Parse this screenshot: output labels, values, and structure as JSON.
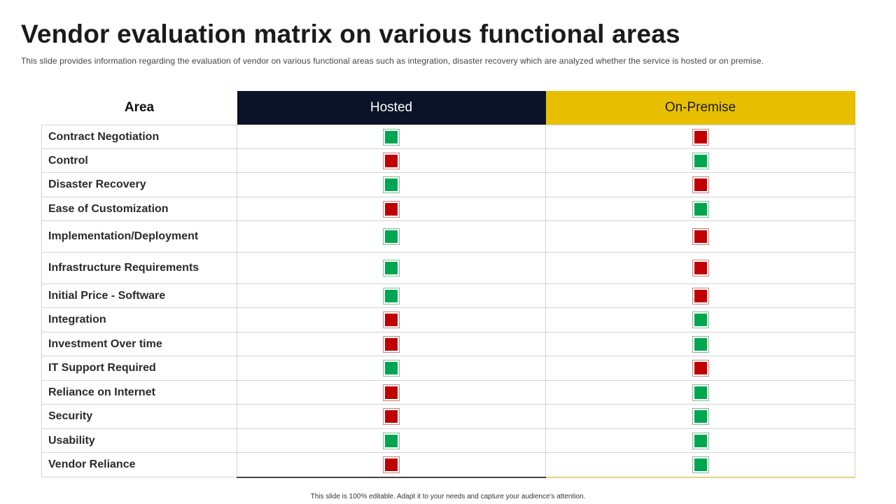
{
  "title": "Vendor evaluation matrix on various functional areas",
  "subtitle": "This slide provides  information  regarding  the evaluation  of vendor  on various  functional  areas such as integration,  disaster recovery  which are analyzed whether  the service  is hosted or on premise.",
  "columns": {
    "area": "Area",
    "hosted": "Hosted",
    "on_premise": "On-Premise"
  },
  "legend_colors": {
    "positive": "#00a650",
    "negative": "#c00000"
  },
  "rows": [
    {
      "area": "Contract Negotiation",
      "row_height": 34,
      "hosted": "positive",
      "on_premise": "negative"
    },
    {
      "area": "Control",
      "row_height": 34,
      "hosted": "negative",
      "on_premise": "positive"
    },
    {
      "area": "Disaster Recovery",
      "row_height": 35,
      "hosted": "positive",
      "on_premise": "negative"
    },
    {
      "area": "Ease of Customization",
      "row_height": 34,
      "hosted": "negative",
      "on_premise": "positive"
    },
    {
      "area": "Implementation/Deployment",
      "row_height": 45,
      "hosted": "positive",
      "on_premise": "negative"
    },
    {
      "area": "Infrastructure Requirements",
      "row_height": 45,
      "hosted": "positive",
      "on_premise": "negative"
    },
    {
      "area": "Initial Price - Software",
      "row_height": 34,
      "hosted": "positive",
      "on_premise": "negative"
    },
    {
      "area": "Integration",
      "row_height": 35,
      "hosted": "negative",
      "on_premise": "positive"
    },
    {
      "area": "Investment Over time",
      "row_height": 34,
      "hosted": "negative",
      "on_premise": "positive"
    },
    {
      "area": "IT Support Required",
      "row_height": 35,
      "hosted": "positive",
      "on_premise": "negative"
    },
    {
      "area": "Reliance on Internet",
      "row_height": 34,
      "hosted": "negative",
      "on_premise": "positive"
    },
    {
      "area": "Security",
      "row_height": 35,
      "hosted": "negative",
      "on_premise": "positive"
    },
    {
      "area": "Usability",
      "row_height": 34,
      "hosted": "positive",
      "on_premise": "positive"
    },
    {
      "area": "Vendor Reliance",
      "row_height": 35,
      "hosted": "negative",
      "on_premise": "positive"
    }
  ],
  "footer": "This slide is 100% editable.  Adapt it to your needs and capture your audience's attention."
}
